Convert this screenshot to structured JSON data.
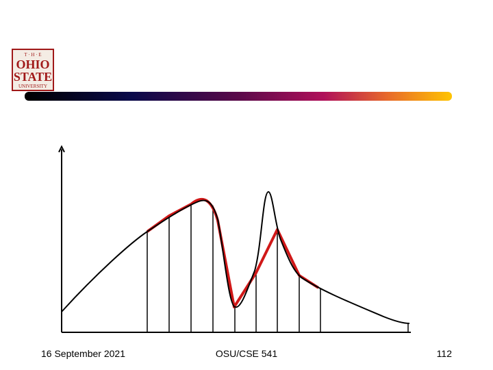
{
  "logo": {
    "line1": "T · H · E",
    "line2": "OHIO",
    "line3": "STATE",
    "line4": "UNIVERSITY"
  },
  "footer": {
    "date": "16 September 2021",
    "course": "OSU/CSE 541",
    "page": "112"
  }
}
